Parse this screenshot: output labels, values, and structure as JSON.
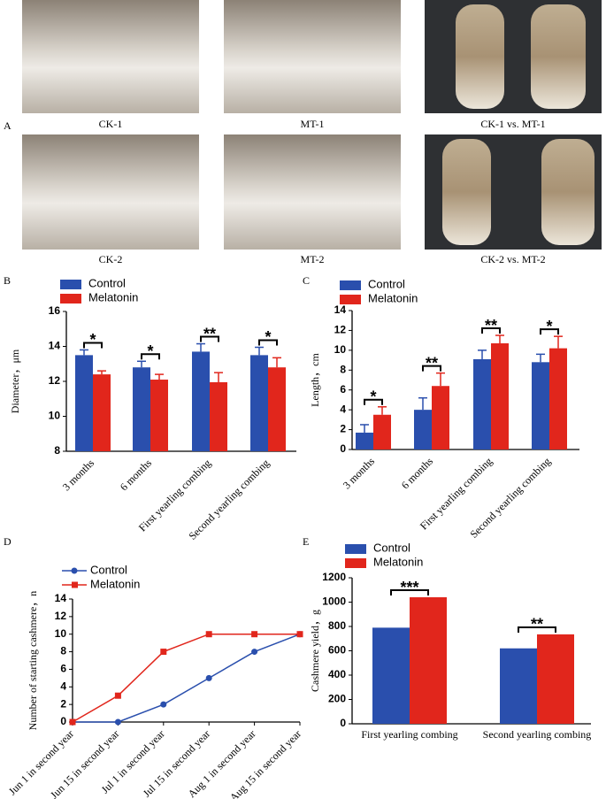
{
  "figure": {
    "panel_labels": [
      "A",
      "B",
      "C",
      "D",
      "E"
    ],
    "photo_captions": [
      "CK-1",
      "MT-1",
      "CK-1 vs. MT-1",
      "CK-2",
      "MT-2",
      "CK-2 vs. MT-2"
    ]
  },
  "chart_data": [
    {
      "type": "bar",
      "y_label": "Diameter，μm",
      "categories": [
        "3 months",
        "6 months",
        "First yearling combing",
        "Second yearling combing"
      ],
      "series": [
        {
          "name": "Control",
          "color": "#2a4fad",
          "values": [
            13.5,
            12.8,
            13.7,
            13.5
          ],
          "errors": [
            0.3,
            0.35,
            0.45,
            0.45
          ]
        },
        {
          "name": "Melatonin",
          "color": "#e1261c",
          "values": [
            12.4,
            12.1,
            11.95,
            12.8
          ],
          "errors": [
            0.2,
            0.3,
            0.55,
            0.55
          ]
        }
      ],
      "annotations": [
        "*",
        "*",
        "**",
        "*"
      ],
      "ylim": [
        8,
        16
      ],
      "yticks": [
        8,
        10,
        12,
        14,
        16
      ]
    },
    {
      "type": "bar",
      "y_label": "Length，cm",
      "categories": [
        "3 months",
        "6 months",
        "First yearling combing",
        "Second yearling combing"
      ],
      "series": [
        {
          "name": "Control",
          "color": "#2a4fad",
          "values": [
            1.7,
            4.0,
            9.1,
            8.8
          ],
          "errors": [
            0.8,
            1.2,
            0.9,
            0.8
          ]
        },
        {
          "name": "Melatonin",
          "color": "#e1261c",
          "values": [
            3.5,
            6.4,
            10.7,
            10.2
          ],
          "errors": [
            0.8,
            1.3,
            0.8,
            1.2
          ]
        }
      ],
      "annotations": [
        "*",
        "**",
        "**",
        "*"
      ],
      "ylim": [
        0,
        14
      ],
      "yticks": [
        0,
        2,
        4,
        6,
        8,
        10,
        12,
        14
      ]
    },
    {
      "type": "line",
      "y_label": "Number of starting cashmere，n",
      "categories": [
        "Jun 1 in second year",
        "Jun 15 in second year",
        "Jul 1 in second year",
        "Jul 15 in second year",
        "Aug 1 in second year",
        "Aug 15 in second year"
      ],
      "series": [
        {
          "name": "Control",
          "color": "#2a4fad",
          "marker": "circle",
          "values": [
            0,
            0,
            2,
            5,
            8,
            10
          ]
        },
        {
          "name": "Melatonin",
          "color": "#e1261c",
          "marker": "square",
          "values": [
            0,
            3,
            8,
            10,
            10,
            10
          ]
        }
      ],
      "ylim": [
        0,
        14
      ],
      "yticks": [
        0,
        2,
        4,
        6,
        8,
        10,
        12,
        14
      ]
    },
    {
      "type": "bar",
      "y_label": "Cashmere yield，g",
      "categories": [
        "First yearling combing",
        "Second yearling combing"
      ],
      "series": [
        {
          "name": "Control",
          "color": "#2a4fad",
          "values": [
            790,
            620
          ]
        },
        {
          "name": "Melatonin",
          "color": "#e1261c",
          "values": [
            1040,
            735
          ]
        }
      ],
      "annotations": [
        "***",
        "**"
      ],
      "ylim": [
        0,
        1200
      ],
      "yticks": [
        0,
        200,
        400,
        600,
        800,
        1000,
        1200
      ]
    }
  ]
}
